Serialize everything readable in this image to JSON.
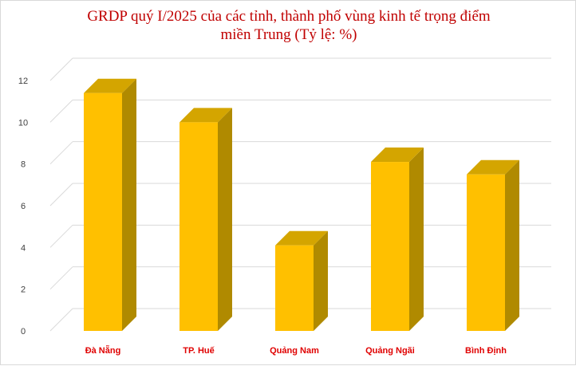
{
  "chart_data": {
    "type": "bar",
    "title": {
      "line1": "GRDP quý I/2025  của các tỉnh, thành phố vùng kinh tế trọng điểm",
      "line2": "miền  Trung (Tỷ lệ: %)"
    },
    "categories": [
      "Đà Nẵng",
      "TP. Huế",
      "Quảng Nam",
      "Quảng Ngãi",
      "Bình Định"
    ],
    "values": [
      11.4,
      10.0,
      4.1,
      8.1,
      7.5
    ],
    "ylim": [
      0,
      12
    ],
    "yticks": [
      "0",
      "2",
      "4",
      "6",
      "8",
      "10",
      "12"
    ],
    "grid": true,
    "bar_3d": true,
    "colors": {
      "bar_front": "#ffc000",
      "bar_side": "#b08a00",
      "bar_top": "#d4a500",
      "grid": "#d9d9d9",
      "title": "#c00000",
      "category_label": "#e00000"
    }
  }
}
